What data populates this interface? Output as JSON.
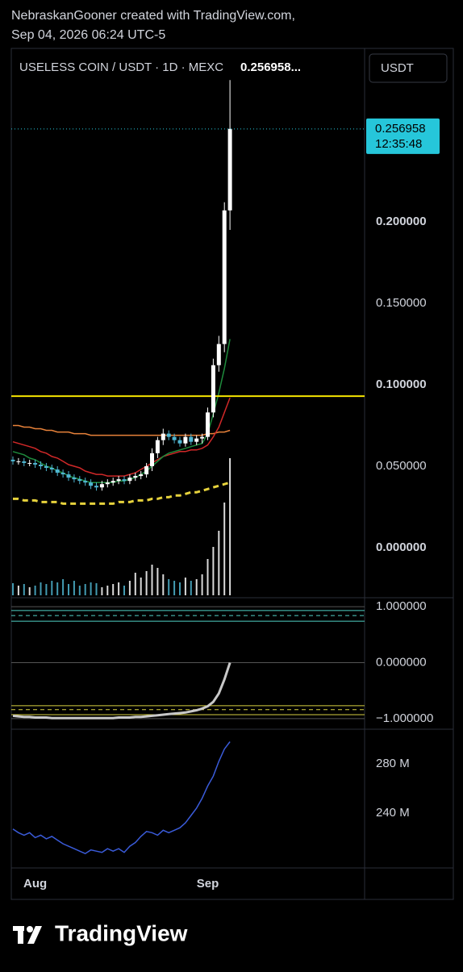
{
  "header": {
    "author_line": "NebraskanGooner created with TradingView.com,",
    "date_line": "Sep 04, 2026 06:24 UTC-5"
  },
  "currency_button": "USDT",
  "footer": {
    "logo": "TradingView"
  },
  "chart_data": [
    {
      "type": "candlestick",
      "title": "USELESS COIN / USDT · 1D · MEXC",
      "last_price_label": "0.256958...",
      "categories": [
        null,
        null,
        null,
        null,
        "Aug",
        null,
        null,
        null,
        null,
        null,
        null,
        null,
        null,
        null,
        null,
        null,
        null,
        null,
        null,
        null,
        null,
        null,
        null,
        null,
        null,
        null,
        null,
        null,
        null,
        null,
        null,
        null,
        null,
        null,
        null,
        "Sep",
        null,
        null,
        null,
        null
      ],
      "open": [
        0.054,
        0.053,
        0.053,
        0.052,
        0.052,
        0.051,
        0.05,
        0.049,
        0.048,
        0.046,
        0.045,
        0.043,
        0.042,
        0.041,
        0.04,
        0.038,
        0.037,
        0.039,
        0.04,
        0.041,
        0.042,
        0.041,
        0.043,
        0.044,
        0.045,
        0.05,
        0.058,
        0.066,
        0.07,
        0.068,
        0.066,
        0.064,
        0.068,
        0.065,
        0.067,
        0.068,
        0.083,
        0.112,
        0.125,
        0.207
      ],
      "high": [
        0.056,
        0.055,
        0.055,
        0.054,
        0.054,
        0.053,
        0.052,
        0.051,
        0.05,
        0.048,
        0.047,
        0.045,
        0.044,
        0.043,
        0.042,
        0.04,
        0.041,
        0.042,
        0.043,
        0.044,
        0.044,
        0.045,
        0.046,
        0.047,
        0.052,
        0.061,
        0.068,
        0.073,
        0.072,
        0.07,
        0.068,
        0.07,
        0.07,
        0.069,
        0.07,
        0.086,
        0.116,
        0.13,
        0.212,
        0.287
      ],
      "low": [
        0.051,
        0.051,
        0.05,
        0.05,
        0.049,
        0.048,
        0.047,
        0.046,
        0.044,
        0.043,
        0.041,
        0.04,
        0.039,
        0.038,
        0.036,
        0.035,
        0.035,
        0.037,
        0.038,
        0.039,
        0.039,
        0.039,
        0.041,
        0.042,
        0.043,
        0.047,
        0.055,
        0.063,
        0.066,
        0.064,
        0.062,
        0.062,
        0.063,
        0.063,
        0.064,
        0.066,
        0.08,
        0.108,
        0.12,
        0.195
      ],
      "close": [
        0.053,
        0.053,
        0.052,
        0.052,
        0.051,
        0.05,
        0.049,
        0.048,
        0.046,
        0.045,
        0.043,
        0.042,
        0.041,
        0.04,
        0.038,
        0.037,
        0.039,
        0.04,
        0.041,
        0.042,
        0.041,
        0.043,
        0.044,
        0.045,
        0.05,
        0.058,
        0.066,
        0.07,
        0.068,
        0.066,
        0.064,
        0.068,
        0.065,
        0.067,
        0.068,
        0.083,
        0.112,
        0.125,
        0.207,
        0.257
      ],
      "volume": [
        15,
        12,
        14,
        10,
        12,
        16,
        14,
        18,
        16,
        20,
        14,
        18,
        12,
        14,
        16,
        15,
        10,
        12,
        14,
        16,
        12,
        18,
        28,
        22,
        30,
        38,
        34,
        26,
        20,
        18,
        16,
        22,
        18,
        20,
        26,
        45,
        60,
        80,
        115,
        170
      ],
      "up_color": "#ffffff",
      "down_color": "#4fb6d1",
      "lines": [
        {
          "color": "#e6d23c",
          "dashed": true,
          "values": [
            0.03,
            0.03,
            0.029,
            0.029,
            0.029,
            0.028,
            0.028,
            0.028,
            0.028,
            0.027,
            0.027,
            0.027,
            0.027,
            0.027,
            0.027,
            0.027,
            0.027,
            0.027,
            0.027,
            0.028,
            0.028,
            0.028,
            0.029,
            0.029,
            0.029,
            0.03,
            0.03,
            0.031,
            0.031,
            0.032,
            0.032,
            0.033,
            0.034,
            0.034,
            0.035,
            0.036,
            0.037,
            0.038,
            0.039,
            0.04
          ]
        },
        {
          "color": "#e8823a",
          "dashed": false,
          "values": [
            0.075,
            0.075,
            0.074,
            0.074,
            0.073,
            0.073,
            0.072,
            0.072,
            0.071,
            0.071,
            0.071,
            0.07,
            0.07,
            0.07,
            0.069,
            0.069,
            0.069,
            0.069,
            0.069,
            0.069,
            0.069,
            0.069,
            0.069,
            0.069,
            0.069,
            0.069,
            0.069,
            0.069,
            0.069,
            0.069,
            0.069,
            0.069,
            0.069,
            0.069,
            0.069,
            0.07,
            0.07,
            0.071,
            0.071,
            0.072
          ]
        },
        {
          "color": "#d02828",
          "dashed": false,
          "values": [
            0.065,
            0.064,
            0.063,
            0.062,
            0.061,
            0.059,
            0.058,
            0.056,
            0.055,
            0.053,
            0.051,
            0.05,
            0.049,
            0.047,
            0.046,
            0.045,
            0.045,
            0.044,
            0.044,
            0.044,
            0.044,
            0.045,
            0.046,
            0.048,
            0.05,
            0.052,
            0.054,
            0.056,
            0.057,
            0.058,
            0.059,
            0.059,
            0.06,
            0.06,
            0.061,
            0.063,
            0.068,
            0.074,
            0.083,
            0.092
          ]
        },
        {
          "color": "#1e8a3c",
          "dashed": false,
          "values": [
            0.059,
            0.058,
            0.057,
            0.055,
            0.054,
            0.052,
            0.05,
            0.049,
            0.047,
            0.046,
            0.044,
            0.043,
            0.042,
            0.041,
            0.04,
            0.04,
            0.04,
            0.04,
            0.04,
            0.041,
            0.041,
            0.042,
            0.043,
            0.045,
            0.047,
            0.05,
            0.053,
            0.056,
            0.058,
            0.059,
            0.06,
            0.061,
            0.062,
            0.063,
            0.064,
            0.07,
            0.082,
            0.095,
            0.11,
            0.128
          ]
        }
      ],
      "horizontal_line": {
        "value": 0.093,
        "color": "#f5e400"
      },
      "price_badge": {
        "value": 0.256958,
        "label": "0.256958",
        "countdown": "12:35:48",
        "color": "#26c6da"
      },
      "ylim": [
        -0.0302,
        0.3064
      ],
      "yticks": [
        {
          "value": 0.2,
          "label": "0.200000"
        },
        {
          "value": 0.15,
          "label": "0.150000"
        },
        {
          "value": 0.1,
          "label": "0.100000"
        },
        {
          "value": 0.05,
          "label": "0.050000"
        },
        {
          "value": 0,
          "label": "0.000000"
        }
      ]
    },
    {
      "type": "line",
      "values": [
        -0.95,
        -0.96,
        -0.97,
        -0.97,
        -0.98,
        -0.98,
        -0.98,
        -0.99,
        -0.99,
        -0.99,
        -0.99,
        -0.99,
        -0.99,
        -0.99,
        -0.99,
        -0.99,
        -0.99,
        -0.99,
        -0.99,
        -0.98,
        -0.98,
        -0.98,
        -0.97,
        -0.97,
        -0.96,
        -0.95,
        -0.94,
        -0.93,
        -0.92,
        -0.91,
        -0.9,
        -0.89,
        -0.87,
        -0.85,
        -0.82,
        -0.78,
        -0.7,
        -0.55,
        -0.3,
        0.0
      ],
      "color": "#c8c8c8",
      "upper_levels": [
        0.93,
        0.84,
        0.74
      ],
      "upper_color": "#4fd1c5",
      "lower_levels": [
        -0.77,
        -0.84,
        -0.93
      ],
      "lower_color": "#d8d040",
      "ylim": [
        -1.16,
        1.145
      ],
      "yticks": [
        {
          "value": 1,
          "label": "1.000000"
        },
        {
          "value": 0,
          "label": "0.000000"
        },
        {
          "value": -1,
          "label": "−1.000000"
        }
      ]
    },
    {
      "type": "line",
      "values": [
        227,
        224,
        222,
        224,
        220,
        222,
        219,
        221,
        218,
        215,
        213,
        211,
        209,
        207,
        210,
        209,
        208,
        211,
        209,
        211,
        208,
        213,
        216,
        221,
        225,
        224,
        222,
        226,
        224,
        226,
        228,
        232,
        238,
        244,
        252,
        262,
        270,
        282,
        292,
        298
      ],
      "color": "#3a5bd9",
      "ylim": [
        196,
        307.5
      ],
      "yticks": [
        {
          "value": 280,
          "label": "280 M"
        },
        {
          "value": 240,
          "label": "240 M"
        }
      ]
    }
  ]
}
